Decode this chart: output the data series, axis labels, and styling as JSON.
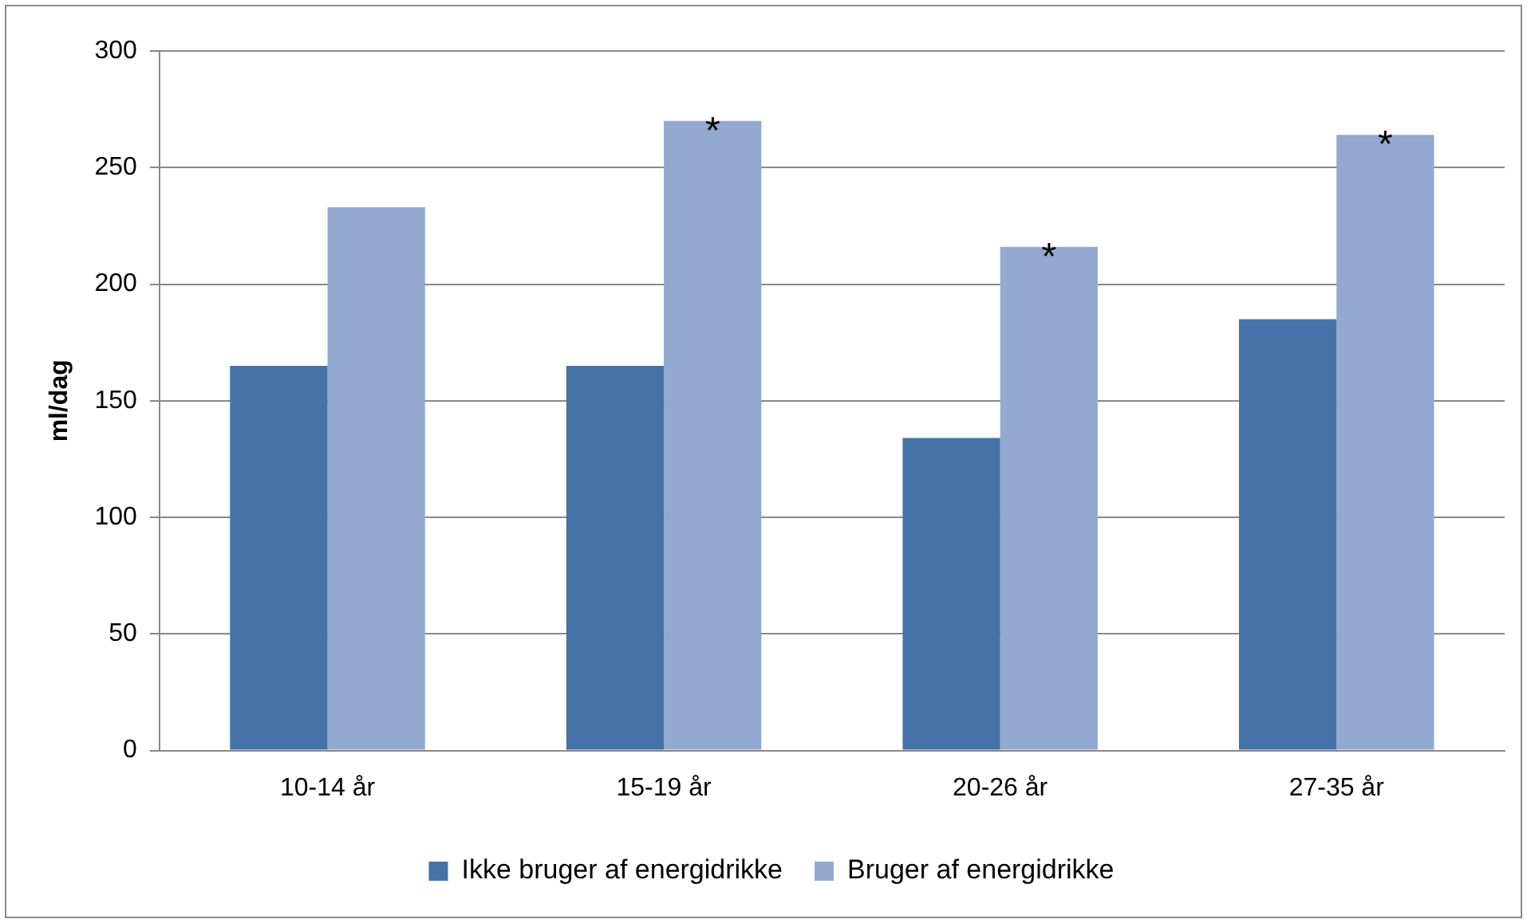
{
  "chart_data": {
    "type": "bar",
    "ylabel": "ml/dag",
    "categories": [
      "10-14 år",
      "15-19 år",
      "20-26 år",
      "27-35 år"
    ],
    "series": [
      {
        "name": "Ikke bruger af energidrikke",
        "color": "#4572a7",
        "values": [
          165,
          165,
          134,
          185
        ]
      },
      {
        "name": "Bruger af energidrikke",
        "color": "#93a9cf",
        "values": [
          233,
          270,
          216,
          264
        ]
      }
    ],
    "ylim": [
      0,
      300
    ],
    "yticks": [
      0,
      50,
      100,
      150,
      200,
      250,
      300
    ],
    "grid": "y",
    "legend": "bottom",
    "annotations": [
      {
        "text": "*",
        "x": "15-19 år",
        "y": 270
      },
      {
        "text": "*",
        "x": "20-26 år",
        "y": 216
      },
      {
        "text": "*",
        "x": "27-35 år",
        "y": 264
      }
    ]
  }
}
